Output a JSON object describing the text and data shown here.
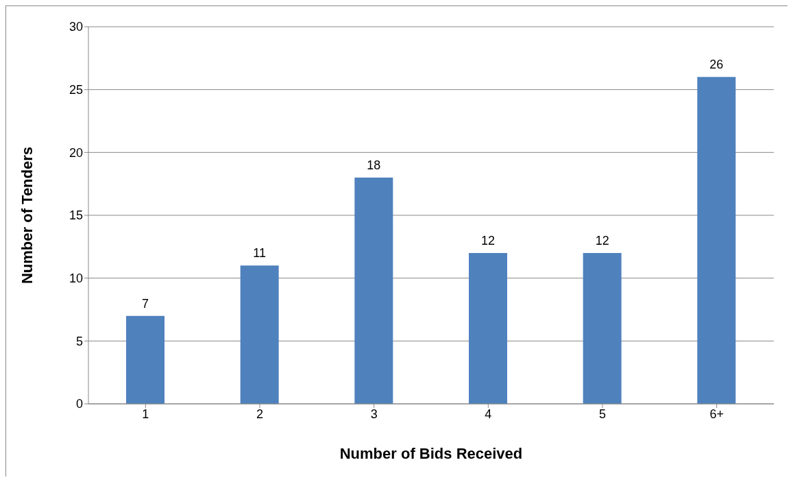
{
  "chart_data": {
    "type": "bar",
    "xlabel": "Number of Bids Received",
    "ylabel": "Number of Tenders",
    "categories": [
      "1",
      "2",
      "3",
      "4",
      "5",
      "6+"
    ],
    "values": [
      7,
      11,
      18,
      12,
      12,
      26
    ],
    "color": "#4f81bd",
    "ylim": [
      0,
      30
    ],
    "yticks": [
      0,
      5,
      10,
      15,
      20,
      25,
      30
    ],
    "grid": "y",
    "data_labels": true
  }
}
